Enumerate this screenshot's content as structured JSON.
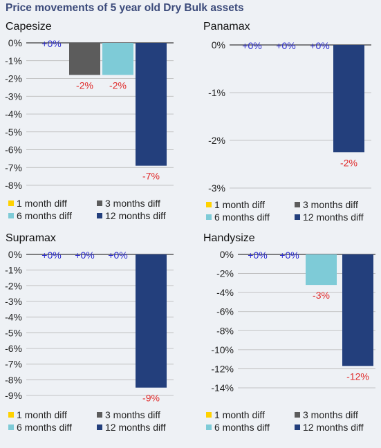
{
  "page": {
    "title": "Price movements of 5 year old Dry Bulk assets"
  },
  "colors": {
    "1 month diff": "#ffd200",
    "3 months diff": "#5c5c5c",
    "6 months diff": "#7ecbd7",
    "12 months diff": "#233f7c",
    "positive_label": "#2b2bcf",
    "negative_label": "#e02b2b",
    "axis": "#3a3a3a",
    "grid": "#b5b5b5"
  },
  "legend": {
    "items": [
      "1 month diff",
      "3 months diff",
      "6 months diff",
      "12 months diff"
    ]
  },
  "chart_data": [
    {
      "title": "Capesize",
      "type": "bar",
      "categories": [
        "1 month diff",
        "3 months diff",
        "6 months diff",
        "12 months diff"
      ],
      "values": [
        0,
        -1.8,
        -1.8,
        -6.9
      ],
      "data_labels": [
        "+0%",
        "-2%",
        "-2%",
        "-7%"
      ],
      "ylim": [
        -8,
        0
      ],
      "y_ticks": [
        0,
        -1,
        -2,
        -3,
        -4,
        -5,
        -6,
        -7,
        -8
      ],
      "y_tick_labels": [
        "0%",
        "-1%",
        "-2%",
        "-3%",
        "-4%",
        "-5%",
        "-6%",
        "-7%",
        "-8%"
      ],
      "grid": true,
      "legend_position": "bottom"
    },
    {
      "title": "Panamax",
      "type": "bar",
      "categories": [
        "1 month diff",
        "3 months diff",
        "6 months diff",
        "12 months diff"
      ],
      "values": [
        0,
        0,
        0,
        -2.25
      ],
      "data_labels": [
        "+0%",
        "+0%",
        "+0%",
        "-2%"
      ],
      "ylim": [
        -3,
        0
      ],
      "y_ticks": [
        0,
        -1,
        -2,
        -3
      ],
      "y_tick_labels": [
        "0%",
        "-1%",
        "-2%",
        "-3%"
      ],
      "grid": true,
      "legend_position": "bottom"
    },
    {
      "title": "Supramax",
      "type": "bar",
      "categories": [
        "1 month diff",
        "3 months diff",
        "6 months diff",
        "12 months diff"
      ],
      "values": [
        0,
        0,
        0,
        -8.5
      ],
      "data_labels": [
        "+0%",
        "+0%",
        "+0%",
        "-9%"
      ],
      "ylim": [
        -9,
        0
      ],
      "y_ticks": [
        0,
        -1,
        -2,
        -3,
        -4,
        -5,
        -6,
        -7,
        -8,
        -9
      ],
      "y_tick_labels": [
        "0%",
        "-1%",
        "-2%",
        "-3%",
        "-4%",
        "-5%",
        "-6%",
        "-7%",
        "-8%",
        "-9%"
      ],
      "grid": true,
      "legend_position": "bottom"
    },
    {
      "title": "Handysize",
      "type": "bar",
      "categories": [
        "1 month diff",
        "3 months diff",
        "6 months diff",
        "12 months diff"
      ],
      "values": [
        0,
        0,
        -3.2,
        -11.7
      ],
      "data_labels": [
        "+0%",
        "+0%",
        "-3%",
        "-12%"
      ],
      "ylim": [
        -14,
        0
      ],
      "y_ticks": [
        0,
        -2,
        -4,
        -6,
        -8,
        -10,
        -12,
        -14
      ],
      "y_tick_labels": [
        "0%",
        "-2%",
        "-4%",
        "-6%",
        "-8%",
        "-10%",
        "-12%",
        "-14%"
      ],
      "grid": true,
      "legend_position": "bottom"
    }
  ]
}
